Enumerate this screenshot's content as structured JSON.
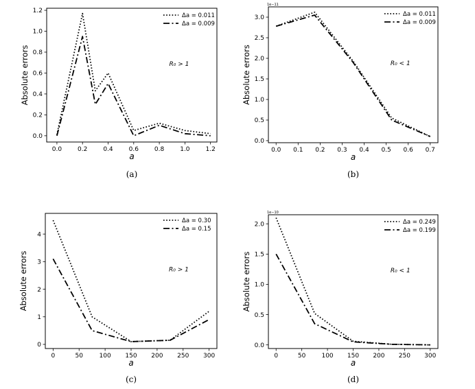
{
  "chart_data": [
    {
      "type": "line",
      "panel_label": "(a)",
      "xlabel": "a",
      "ylabel": "Absolute errors",
      "xlim": [
        -0.08,
        1.25
      ],
      "ylim": [
        -0.06,
        1.22
      ],
      "xticks": [
        0.0,
        0.2,
        0.4,
        0.6,
        0.8,
        1.0,
        1.2
      ],
      "xtick_labels": [
        "0.0",
        "0.2",
        "0.4",
        "0.6",
        "0.8",
        "1.0",
        "1.2"
      ],
      "yticks": [
        0.0,
        0.2,
        0.4,
        0.6,
        0.8,
        1.0,
        1.2
      ],
      "ytick_labels": [
        "0.0",
        "0.2",
        "0.4",
        "0.6",
        "0.8",
        "1.0",
        "1.2"
      ],
      "annotation": "R₀ > 1",
      "offset_text": "",
      "legend_position": "top-right",
      "series": [
        {
          "name": "Δa = 0.011",
          "style": "dotted",
          "x": [
            0.0,
            0.2,
            0.3,
            0.4,
            0.6,
            0.8,
            1.0,
            1.2
          ],
          "values": [
            0.01,
            1.17,
            0.43,
            0.6,
            0.05,
            0.12,
            0.05,
            0.02
          ]
        },
        {
          "name": "Δa = 0.009",
          "style": "dashdot",
          "x": [
            0.0,
            0.2,
            0.3,
            0.4,
            0.6,
            0.8,
            1.0,
            1.2
          ],
          "values": [
            0.0,
            0.95,
            0.3,
            0.5,
            0.0,
            0.1,
            0.02,
            0.0
          ]
        }
      ]
    },
    {
      "type": "line",
      "panel_label": "(b)",
      "xlabel": "a",
      "ylabel": "Absolute errors",
      "xlim": [
        -0.035,
        0.735
      ],
      "ylim": [
        -0.05,
        3.25
      ],
      "xticks": [
        0.0,
        0.1,
        0.2,
        0.3,
        0.4,
        0.5,
        0.6,
        0.7
      ],
      "xtick_labels": [
        "0.0",
        "0.1",
        "0.2",
        "0.3",
        "0.4",
        "0.5",
        "0.6",
        "0.7"
      ],
      "yticks": [
        0.0,
        0.5,
        1.0,
        1.5,
        2.0,
        2.5,
        3.0
      ],
      "ytick_labels": [
        "0.0",
        "0.5",
        "1.0",
        "1.5",
        "2.0",
        "2.5",
        "3.0"
      ],
      "annotation": "R₀ < 1",
      "offset_text": "1e−11",
      "legend_position": "top-right",
      "series": [
        {
          "name": "Δa = 0.011",
          "style": "dotted",
          "x": [
            0.0,
            0.175,
            0.35,
            0.525,
            0.7
          ],
          "values": [
            2.78,
            3.12,
            1.93,
            0.55,
            0.1
          ]
        },
        {
          "name": "Δa = 0.009",
          "style": "dashdot",
          "x": [
            0.0,
            0.175,
            0.35,
            0.525,
            0.7
          ],
          "values": [
            2.78,
            3.05,
            1.9,
            0.5,
            0.1
          ]
        }
      ]
    },
    {
      "type": "line",
      "panel_label": "(c)",
      "xlabel": "a",
      "ylabel": "Absolute errors",
      "xlim": [
        -15,
        315
      ],
      "ylim": [
        -0.15,
        4.75
      ],
      "xticks": [
        0,
        50,
        100,
        150,
        200,
        250,
        300
      ],
      "xtick_labels": [
        "0",
        "50",
        "100",
        "150",
        "200",
        "250",
        "300"
      ],
      "yticks": [
        0,
        1,
        2,
        3,
        4
      ],
      "ytick_labels": [
        "0",
        "1",
        "2",
        "3",
        "4"
      ],
      "annotation": "R₀ > 1",
      "offset_text": "",
      "legend_position": "top-right",
      "series": [
        {
          "name": "Δa = 0.30",
          "style": "dotted",
          "x": [
            0,
            75,
            150,
            225,
            300
          ],
          "values": [
            4.5,
            1.0,
            0.1,
            0.15,
            1.2
          ]
        },
        {
          "name": "Δa = 0.15",
          "style": "dashdot",
          "x": [
            0,
            75,
            150,
            225,
            300
          ],
          "values": [
            3.1,
            0.5,
            0.1,
            0.15,
            0.9
          ]
        }
      ]
    },
    {
      "type": "line",
      "panel_label": "(d)",
      "xlabel": "a",
      "ylabel": "Absolute errors",
      "xlim": [
        -15,
        315
      ],
      "ylim": [
        -0.06,
        2.15
      ],
      "xticks": [
        0,
        50,
        100,
        150,
        200,
        250,
        300
      ],
      "xtick_labels": [
        "0",
        "50",
        "100",
        "150",
        "200",
        "250",
        "300"
      ],
      "yticks": [
        0.0,
        0.5,
        1.0,
        1.5,
        2.0
      ],
      "ytick_labels": [
        "0.0",
        "0.5",
        "1.0",
        "1.5",
        "2.0"
      ],
      "annotation": "R₀ < 1",
      "offset_text": "1e−10",
      "legend_position": "top-right",
      "series": [
        {
          "name": "Δa = 0.249",
          "style": "dotted",
          "x": [
            0,
            75,
            150,
            225,
            300
          ],
          "values": [
            2.1,
            0.52,
            0.06,
            0.01,
            0.0
          ]
        },
        {
          "name": "Δa = 0.199",
          "style": "dashdot",
          "x": [
            0,
            75,
            150,
            225,
            300
          ],
          "values": [
            1.5,
            0.35,
            0.05,
            0.01,
            0.0
          ]
        }
      ]
    }
  ]
}
